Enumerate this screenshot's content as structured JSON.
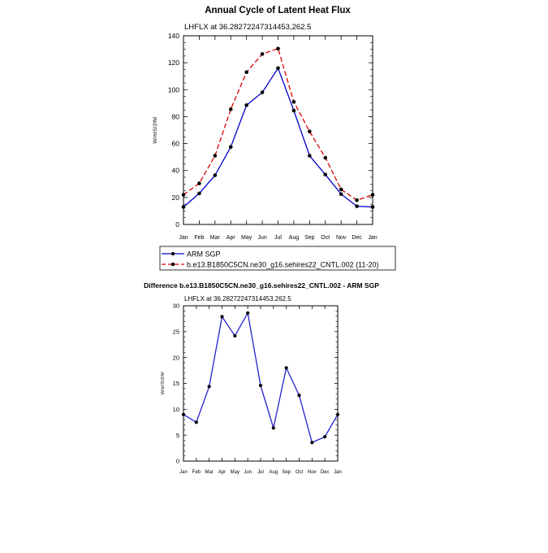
{
  "chart_data": [
    {
      "type": "line",
      "title": "Annual Cycle of Latent Heat Flux",
      "subtitle": "LHFLX at 36.28272247314453,262.5",
      "xlabel": "",
      "ylabel": "W/m!S!2!N!",
      "ylim": [
        0,
        140
      ],
      "yticks": [
        "0",
        "20",
        "40",
        "60",
        "80",
        "100",
        "120",
        "140"
      ],
      "categories": [
        "Jan",
        "Feb",
        "Mar",
        "Apr",
        "May",
        "Jun",
        "Jul",
        "Aug",
        "Sep",
        "Oct",
        "Nov",
        "Dec",
        "Jan"
      ],
      "grid": false,
      "legend_position": "bottom",
      "series": [
        {
          "name": "ARM SGP",
          "color": "#0000cc",
          "dash": "solid",
          "values": [
            13,
            23,
            36.5,
            57.5,
            88.5,
            98,
            116,
            84.5,
            51,
            37,
            22.5,
            13.5,
            13
          ]
        },
        {
          "name": "b.e13.B1850C5CN.ne30_g16.sehires22_CNTL.002 (11-20)",
          "color": "#dd0000",
          "dash": "dashed",
          "values": [
            22,
            30.5,
            51,
            85.5,
            113,
            126.5,
            130.5,
            91,
            69,
            49.5,
            26,
            18,
            22
          ]
        }
      ]
    },
    {
      "type": "line",
      "title": "Difference b.e13.B1850C5CN.ne30_g16.sehires22_CNTL.002 - ARM SGP",
      "subtitle": "LHFLX at 36.28272247314453,262.5",
      "xlabel": "",
      "ylabel": "W/m!S!2!N!",
      "ylim": [
        0,
        30
      ],
      "yticks": [
        "0",
        "5",
        "10",
        "15",
        "20",
        "25",
        "30"
      ],
      "categories": [
        "Jan",
        "Feb",
        "Mar",
        "Apr",
        "May",
        "Jun",
        "Jul",
        "Aug",
        "Sep",
        "Oct",
        "Nov",
        "Dec",
        "Jan"
      ],
      "grid": false,
      "series": [
        {
          "color": "#2222cc",
          "dash": "solid",
          "values": [
            9,
            7.5,
            14.4,
            27.9,
            24.2,
            28.6,
            14.6,
            6.4,
            18,
            12.7,
            3.6,
            4.7,
            9
          ]
        }
      ]
    }
  ]
}
